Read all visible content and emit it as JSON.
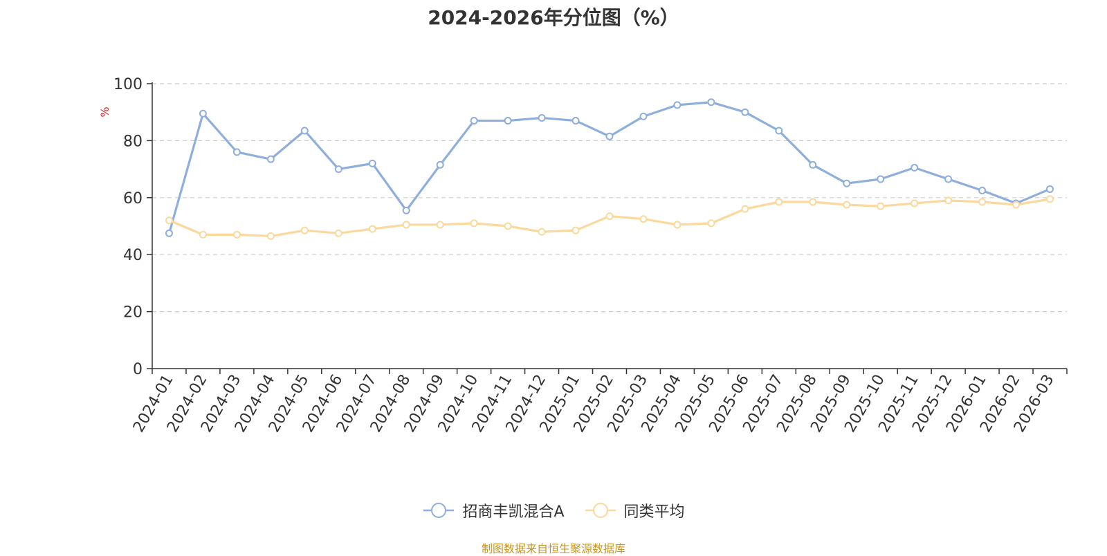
{
  "title": "2024-2026年分位图（%）",
  "source_note": "制图数据来自恒生聚源数据库",
  "chart_data": {
    "type": "line",
    "title": "2024-2026年分位图（%）",
    "ylabel": "%",
    "ylim": [
      0,
      100
    ],
    "yticks": [
      0,
      20,
      40,
      60,
      80,
      100
    ],
    "grid": true,
    "legend_position": "bottom",
    "categories": [
      "2024-01",
      "2024-02",
      "2024-03",
      "2024-04",
      "2024-05",
      "2024-06",
      "2024-07",
      "2024-08",
      "2024-09",
      "2024-10",
      "2024-11",
      "2024-12",
      "2025-01",
      "2025-02",
      "2025-03",
      "2025-04",
      "2025-05",
      "2025-06",
      "2025-07",
      "2025-08",
      "2025-09",
      "2025-10",
      "2025-11",
      "2025-12",
      "2026-01",
      "2026-02",
      "2026-03"
    ],
    "series": [
      {
        "name": "招商丰凯混合A",
        "color": "#8eaedc",
        "values": [
          47.5,
          89.5,
          76,
          73.5,
          83.5,
          70,
          72,
          55.5,
          71.5,
          87,
          87,
          88,
          87,
          81.5,
          88.5,
          92.5,
          93.5,
          90,
          83.5,
          71.5,
          65,
          66.5,
          70.5,
          66.5,
          62.5,
          58,
          63
        ]
      },
      {
        "name": "同类平均",
        "color": "#fbd89b",
        "values": [
          52,
          47,
          47,
          46.5,
          48.5,
          47.5,
          49,
          50.5,
          50.5,
          51,
          50,
          48,
          48.5,
          53.5,
          52.5,
          50.5,
          51,
          56,
          58.5,
          58.5,
          57.5,
          57,
          58,
          59,
          58.5,
          57.5,
          59.5
        ]
      }
    ]
  }
}
